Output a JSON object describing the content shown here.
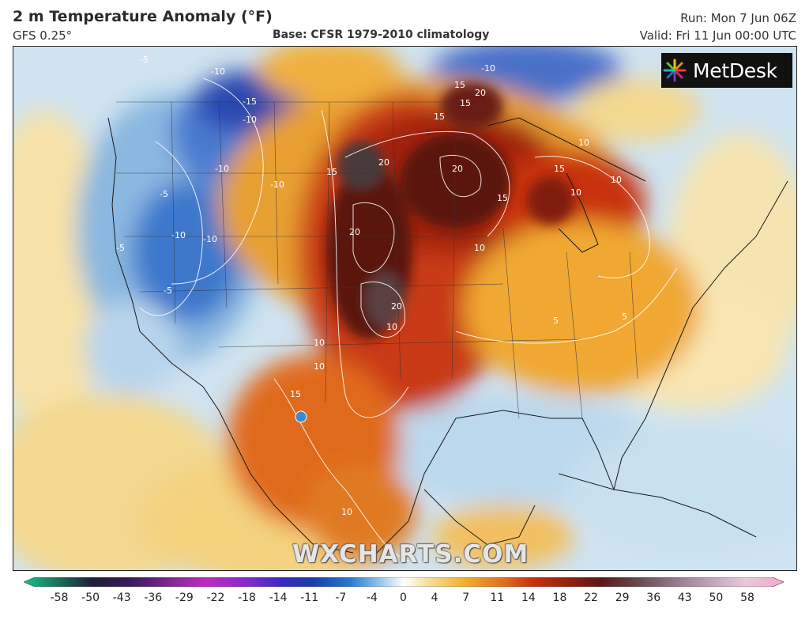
{
  "header": {
    "title": "2 m Temperature Anomaly (°F)",
    "model": "GFS 0.25°",
    "base": "Base: CFSR 1979-2010 climatology",
    "run": "Run: Mon 7 Jun 06Z",
    "valid": "Valid: Fri 11 Jun 00:00 UTC"
  },
  "logo": {
    "text": "MetDesk",
    "icon": "metdesk-starburst-icon"
  },
  "watermark": "WXCHARTS.COM",
  "legend": {
    "labels": [
      "-58",
      "-50",
      "-43",
      "-36",
      "-29",
      "-22",
      "-18",
      "-14",
      "-11",
      "-7",
      "-4",
      "0",
      "4",
      "7",
      "11",
      "14",
      "18",
      "22",
      "29",
      "36",
      "43",
      "50",
      "58"
    ],
    "colors": [
      "#18c28c",
      "#1a7a5e",
      "#1e1e3a",
      "#3a1a5a",
      "#6a2a8a",
      "#b02aa8",
      "#8a2ad0",
      "#4a2ac8",
      "#1c3ca8",
      "#2a7ad0",
      "#9ac8e8",
      "#ffffff",
      "#f8e0a0",
      "#f0b030",
      "#e07020",
      "#c83010",
      "#902010",
      "#5a1a18",
      "#6a4a50",
      "#9a7a90",
      "#c8a8c0",
      "#e8c8d8",
      "#f2a8cc"
    ]
  },
  "map": {
    "contour_labels": [
      {
        "text": "-10"
      },
      {
        "text": "-15"
      },
      {
        "text": "-10"
      },
      {
        "text": "-5"
      },
      {
        "text": "-10"
      },
      {
        "text": "-10"
      },
      {
        "text": "-10"
      },
      {
        "text": "-10"
      },
      {
        "text": "-5"
      },
      {
        "text": "-5"
      },
      {
        "text": "20"
      },
      {
        "text": "15"
      },
      {
        "text": "20"
      },
      {
        "text": "15"
      },
      {
        "text": "20"
      },
      {
        "text": "20"
      },
      {
        "text": "15"
      },
      {
        "text": "10"
      },
      {
        "text": "15"
      },
      {
        "text": "10"
      },
      {
        "text": "15"
      },
      {
        "text": "10"
      },
      {
        "text": "10"
      },
      {
        "text": "20"
      },
      {
        "text": "15"
      },
      {
        "text": "10"
      },
      {
        "text": "10"
      },
      {
        "text": "5"
      },
      {
        "text": "5"
      },
      {
        "text": "15"
      },
      {
        "text": "10"
      },
      {
        "text": "10"
      },
      {
        "text": "-10"
      },
      {
        "text": "-5"
      }
    ]
  }
}
